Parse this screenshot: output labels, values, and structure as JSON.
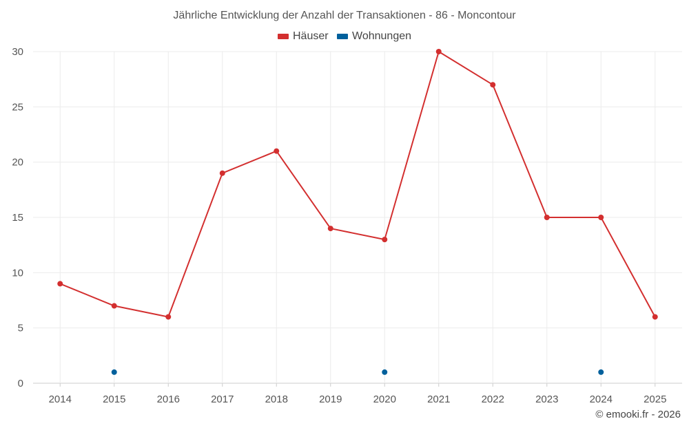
{
  "chart_data": {
    "type": "line",
    "title": "Jährliche Entwicklung der Anzahl der Transaktionen - 86 - Moncontour",
    "categories": [
      "2014",
      "2015",
      "2016",
      "2017",
      "2018",
      "2019",
      "2020",
      "2021",
      "2022",
      "2023",
      "2024",
      "2025"
    ],
    "series": [
      {
        "name": "Häuser",
        "color": "#d32f2f",
        "values": [
          9,
          7,
          6,
          19,
          21,
          14,
          13,
          30,
          27,
          15,
          15,
          6
        ]
      },
      {
        "name": "Wohnungen",
        "color": "#00609c",
        "values": [
          null,
          1,
          null,
          null,
          null,
          null,
          1,
          null,
          null,
          null,
          1,
          null
        ]
      }
    ],
    "ylim": [
      0,
      30
    ],
    "yticks": [
      0,
      5,
      10,
      15,
      20,
      25,
      30
    ],
    "grid": true,
    "legend": "top-center",
    "credit": "© emooki.fr - 2026"
  }
}
